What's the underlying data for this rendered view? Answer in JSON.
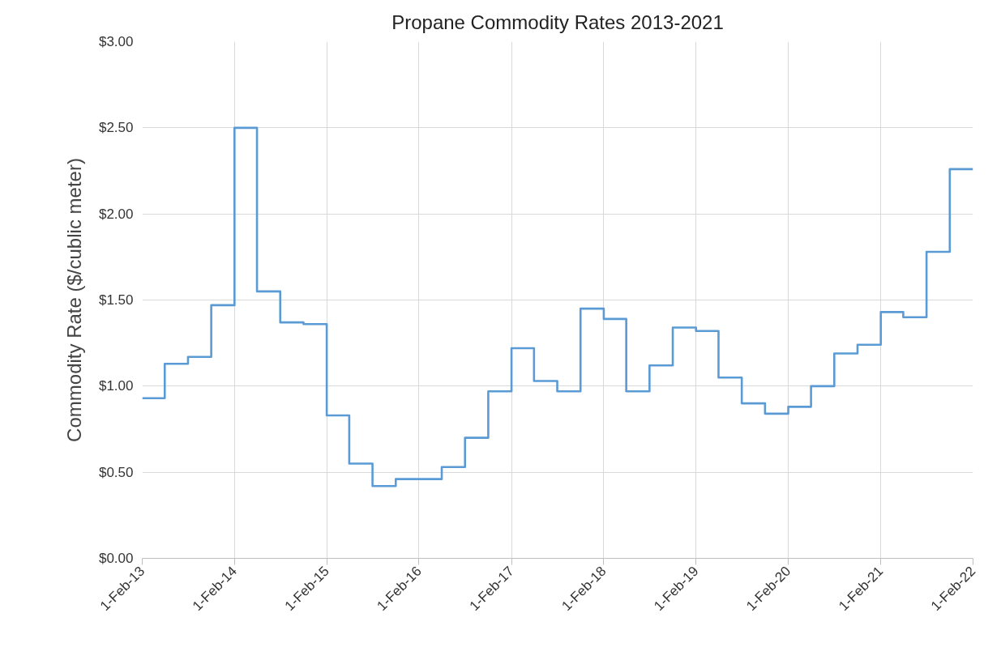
{
  "chart_data": {
    "type": "step",
    "title": "Propane Commodity Rates 2013-2021",
    "ylabel": "Commodity Rate ($/cublic meter)",
    "x": [
      "2013-02-01",
      "2013-05-01",
      "2013-08-01",
      "2013-11-01",
      "2014-02-01",
      "2014-05-01",
      "2014-08-01",
      "2014-11-01",
      "2015-02-01",
      "2015-05-01",
      "2015-08-01",
      "2015-11-01",
      "2016-02-01",
      "2016-05-01",
      "2016-08-01",
      "2016-11-01",
      "2017-02-01",
      "2017-05-01",
      "2017-08-01",
      "2017-11-01",
      "2018-02-01",
      "2018-05-01",
      "2018-08-01",
      "2018-11-01",
      "2019-02-01",
      "2019-05-01",
      "2019-08-01",
      "2019-11-01",
      "2020-02-01",
      "2020-05-01",
      "2020-08-01",
      "2020-11-01",
      "2021-02-01",
      "2021-05-01",
      "2021-08-01",
      "2021-11-01",
      "2022-02-01"
    ],
    "series": [
      {
        "color": "#5b9bd5",
        "values": [
          0.93,
          1.13,
          1.17,
          1.47,
          2.5,
          1.55,
          1.37,
          1.36,
          0.83,
          0.55,
          0.42,
          0.46,
          0.46,
          0.53,
          0.7,
          0.97,
          1.22,
          1.03,
          0.97,
          1.45,
          1.39,
          0.97,
          1.12,
          1.34,
          1.32,
          1.05,
          0.9,
          0.84,
          0.88,
          1.0,
          1.19,
          1.24,
          1.43,
          1.4,
          1.78,
          2.26,
          2.26
        ]
      }
    ],
    "xlim": [
      "2013-02-01",
      "2022-02-01"
    ],
    "xticks": [
      {
        "value": "2013-02-01",
        "label": "1-Feb-13"
      },
      {
        "value": "2014-02-01",
        "label": "1-Feb-14"
      },
      {
        "value": "2015-02-01",
        "label": "1-Feb-15"
      },
      {
        "value": "2016-02-01",
        "label": "1-Feb-16"
      },
      {
        "value": "2017-02-01",
        "label": "1-Feb-17"
      },
      {
        "value": "2018-02-01",
        "label": "1-Feb-18"
      },
      {
        "value": "2019-02-01",
        "label": "1-Feb-19"
      },
      {
        "value": "2020-02-01",
        "label": "1-Feb-20"
      },
      {
        "value": "2021-02-01",
        "label": "1-Feb-21"
      },
      {
        "value": "2022-02-01",
        "label": "1-Feb-22"
      }
    ],
    "ylim": [
      0,
      3
    ],
    "yticks": [
      {
        "value": 0,
        "label": "$0.00"
      },
      {
        "value": 0.5,
        "label": "$0.50"
      },
      {
        "value": 1,
        "label": "$1.00"
      },
      {
        "value": 1.5,
        "label": "$1.50"
      },
      {
        "value": 2,
        "label": "$2.00"
      },
      {
        "value": 2.5,
        "label": "$2.50"
      },
      {
        "value": 3,
        "label": "$3.00"
      }
    ],
    "grid": true,
    "line_style": "solid",
    "marker": "none"
  }
}
